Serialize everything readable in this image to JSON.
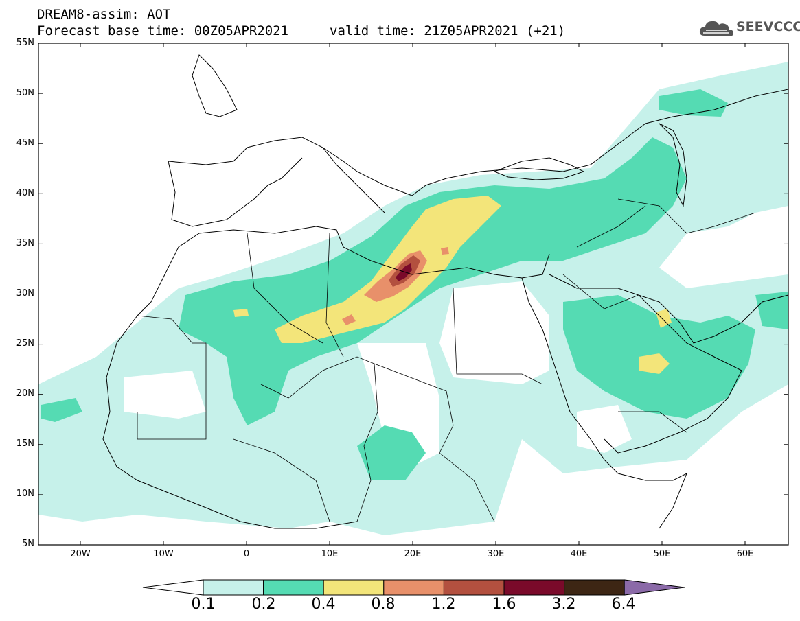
{
  "header": {
    "title_line1": "DREAM8-assim: AOT",
    "title_line2": "Forecast base time: 00Z05APR2021",
    "valid_time": "valid time: 21Z05APR2021 (+21)",
    "logo_text": "SEEVCCC"
  },
  "map": {
    "variable": "AOT",
    "lat_labels": [
      "55N",
      "50N",
      "45N",
      "40N",
      "35N",
      "30N",
      "25N",
      "20N",
      "15N",
      "10N",
      "5N"
    ],
    "lon_labels": [
      "20W",
      "10W",
      "0",
      "10E",
      "20E",
      "30E",
      "40E",
      "50E",
      "60E"
    ]
  },
  "colorbar": {
    "levels": [
      "0.1",
      "0.2",
      "0.4",
      "0.8",
      "1.2",
      "1.6",
      "3.2",
      "6.4"
    ],
    "colors": [
      "#ffffff",
      "#c6f1ea",
      "#55dbb3",
      "#f3e57a",
      "#e8906a",
      "#b3503f",
      "#7a0a2a",
      "#3d2614",
      "#8b6aa8"
    ]
  }
}
